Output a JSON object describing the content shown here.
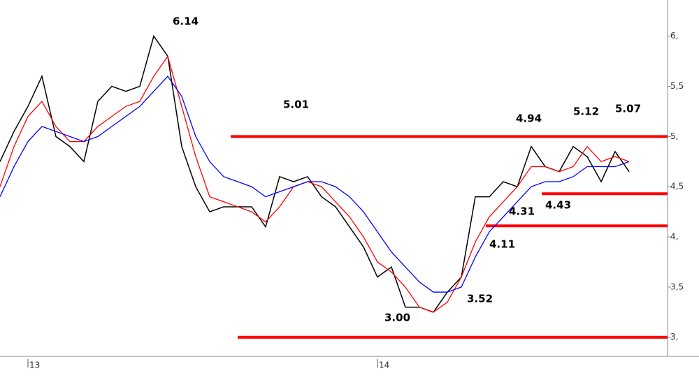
{
  "chart_data": {
    "type": "line",
    "categories": [
      null,
      null,
      "13",
      null,
      null,
      null,
      null,
      null,
      null,
      null,
      null,
      null,
      null,
      null,
      null,
      null,
      null,
      null,
      null,
      null,
      null,
      null,
      null,
      null,
      null,
      null,
      null,
      "14",
      null,
      null,
      null,
      null,
      null,
      null,
      null,
      null,
      null,
      null,
      null,
      null,
      null,
      null,
      null,
      null,
      null,
      null
    ],
    "series": [
      {
        "color": "#000000",
        "values": [
          4.75,
          5.05,
          5.3,
          5.6,
          5.0,
          4.9,
          4.75,
          5.35,
          5.5,
          5.45,
          5.5,
          6.0,
          5.8,
          4.9,
          4.5,
          4.25,
          4.3,
          4.3,
          4.3,
          4.1,
          4.6,
          4.55,
          4.6,
          4.4,
          4.3,
          4.1,
          3.9,
          3.6,
          3.7,
          3.3,
          3.3,
          3.25,
          3.45,
          3.6,
          4.4,
          4.4,
          4.55,
          4.5,
          4.9,
          4.7,
          4.65,
          4.9,
          4.8,
          4.55,
          4.85,
          4.65
        ]
      },
      {
        "color": "#ff0000",
        "values": [
          4.5,
          4.9,
          5.2,
          5.35,
          5.1,
          4.95,
          4.95,
          5.1,
          5.2,
          5.3,
          5.35,
          5.6,
          5.8,
          5.3,
          4.8,
          4.4,
          4.35,
          4.3,
          4.25,
          4.15,
          4.3,
          4.5,
          4.55,
          4.5,
          4.35,
          4.2,
          4.0,
          3.75,
          3.65,
          3.5,
          3.3,
          3.25,
          3.35,
          3.6,
          3.95,
          4.2,
          4.35,
          4.5,
          4.7,
          4.7,
          4.65,
          4.7,
          4.9,
          4.75,
          4.8,
          4.75
        ]
      },
      {
        "color": "#0000ff",
        "values": [
          4.4,
          4.7,
          4.95,
          5.1,
          5.05,
          5.0,
          4.95,
          5.0,
          5.1,
          5.2,
          5.3,
          5.45,
          5.6,
          5.4,
          5.0,
          4.75,
          4.6,
          4.55,
          4.5,
          4.4,
          4.45,
          4.5,
          4.55,
          4.55,
          4.5,
          4.4,
          4.25,
          4.05,
          3.85,
          3.7,
          3.55,
          3.45,
          3.45,
          3.5,
          3.8,
          4.05,
          4.2,
          4.35,
          4.5,
          4.55,
          4.55,
          4.6,
          4.7,
          4.7,
          4.7,
          4.75
        ]
      }
    ],
    "levels": [
      {
        "value": 5.0,
        "color": "#ff0000"
      },
      {
        "value": 4.43,
        "color": "#ff0000"
      },
      {
        "value": 4.11,
        "color": "#ff0000"
      },
      {
        "value": 3.0,
        "color": "#ff0000"
      }
    ],
    "annotations": [
      "6.14",
      "5.01",
      "4.94",
      "5.12",
      "5.07",
      "4.31",
      "4.43",
      "4.11",
      "3.52",
      "3.00"
    ],
    "ylim": [
      2.81,
      6.36
    ],
    "yticks": [
      {
        "value": 3,
        "label": "3,"
      },
      {
        "value": 3.5,
        "label": "3,5"
      },
      {
        "value": 4,
        "label": "4,"
      },
      {
        "value": 4.5,
        "label": "4,5"
      },
      {
        "value": 5,
        "label": "5,"
      },
      {
        "value": 5.5,
        "label": "5,5"
      },
      {
        "value": 6,
        "label": "6,"
      }
    ]
  }
}
